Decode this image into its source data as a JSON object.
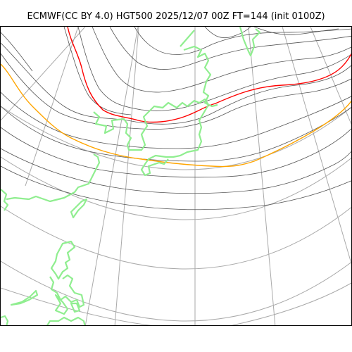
{
  "figure": {
    "title": "ECMWF(CC BY 4.0) HGT500 2025/12/07 00Z FT=144 (init 0100Z)"
  },
  "map": {
    "field": "HGT500",
    "colors": {
      "graticule": "#aaaaaa",
      "contour": "#555555",
      "coastline": "#90ee90",
      "highlight_red": "#ff0000",
      "highlight_orange": "#ffa500"
    }
  }
}
